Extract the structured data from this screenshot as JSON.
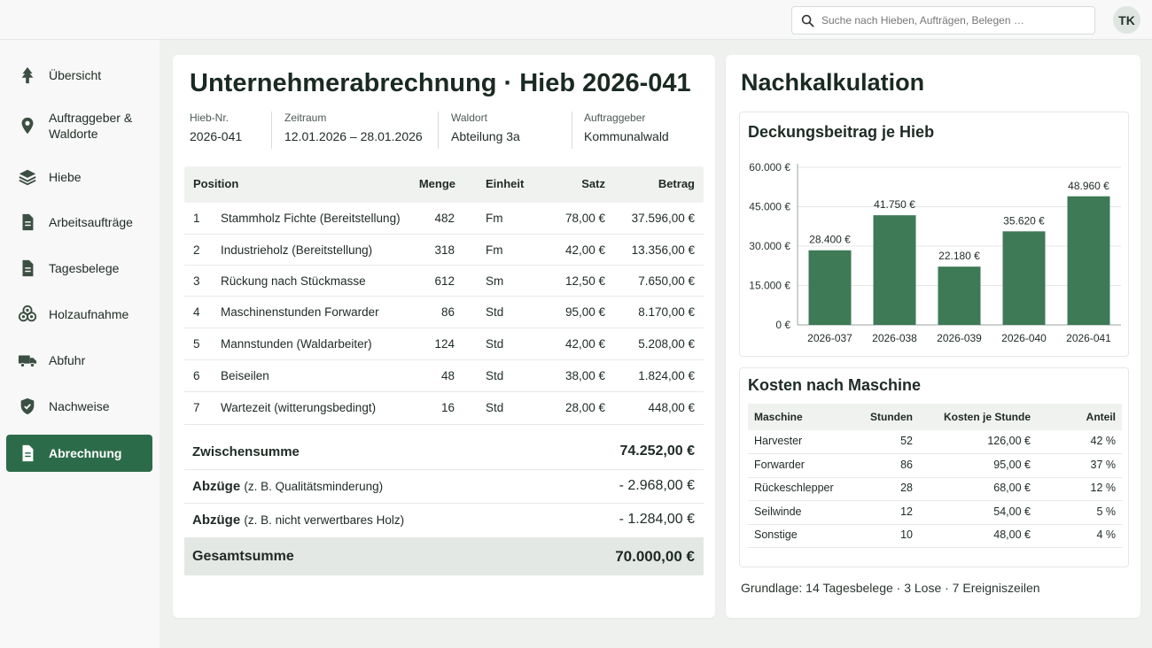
{
  "search": {
    "placeholder": "Suche nach Hieben, Aufträgen, Belegen …"
  },
  "user": {
    "initials": "TK"
  },
  "sidebar": {
    "items": [
      {
        "label": "Übersicht",
        "icon": "tree-icon"
      },
      {
        "label": "Auftraggeber &",
        "label2": "Waldorte",
        "icon": "map-pin-icon"
      },
      {
        "label": "Hiebe",
        "icon": "layers-icon"
      },
      {
        "label": "Arbeitsaufträge",
        "icon": "document-icon"
      },
      {
        "label": "Tagesbelege",
        "icon": "document-icon"
      },
      {
        "label": "Holzaufnahme",
        "icon": "logs-icon"
      },
      {
        "label": "Abfuhr",
        "icon": "truck-icon"
      },
      {
        "label": "Nachweise",
        "icon": "shield-check-icon"
      },
      {
        "label": "Abrechnung",
        "icon": "document-icon",
        "active": true
      }
    ]
  },
  "invoice": {
    "title": "Unternehmerabrechnung · Hieb 2026-041",
    "meta": [
      {
        "key": "Hieb-Nr.",
        "value": "2026-041"
      },
      {
        "key": "Zeitraum",
        "value": "12.01.2026 – 28.01.2026"
      },
      {
        "key": "Waldort",
        "value": "Abteilung 3a"
      },
      {
        "key": "Auftraggeber",
        "value": "Kommunalwald"
      }
    ],
    "columns": {
      "pos": "Position",
      "menge": "Menge",
      "einheit": "Einheit",
      "satz": "Satz",
      "betrag": "Betrag"
    },
    "rows": [
      {
        "nr": "1",
        "desc": "Stammholz Fichte (Bereitstellung)",
        "menge": "482",
        "einheit": "Fm",
        "satz": "78,00 €",
        "betrag": "37.596,00 €"
      },
      {
        "nr": "2",
        "desc": "Industrieholz (Bereitstellung)",
        "menge": "318",
        "einheit": "Fm",
        "satz": "42,00 €",
        "betrag": "13.356,00 €"
      },
      {
        "nr": "3",
        "desc": "Rückung nach Stückmasse",
        "menge": "612",
        "einheit": "Sm",
        "satz": "12,50 €",
        "betrag": "7.650,00 €"
      },
      {
        "nr": "4",
        "desc": "Maschinenstunden Forwarder",
        "menge": "86",
        "einheit": "Std",
        "satz": "95,00 €",
        "betrag": "8.170,00 €"
      },
      {
        "nr": "5",
        "desc": "Mannstunden (Waldarbeiter)",
        "menge": "124",
        "einheit": "Std",
        "satz": "42,00 €",
        "betrag": "5.208,00 €"
      },
      {
        "nr": "6",
        "desc": "Beiseilen",
        "menge": "48",
        "einheit": "Std",
        "satz": "38,00 €",
        "betrag": "1.824,00 €"
      },
      {
        "nr": "7",
        "desc": "Wartezeit (witterungsbedingt)",
        "menge": "16",
        "einheit": "Std",
        "satz": "28,00 €",
        "betrag": "448,00 €"
      }
    ],
    "subtotal": {
      "label": "Zwischensumme",
      "value": "74.252,00 €"
    },
    "deductions": [
      {
        "label": "Abzüge",
        "note": "(z. B. Qualitätsminderung)",
        "value": "- 2.968,00 €"
      },
      {
        "label": "Abzüge",
        "note": "(z. B. nicht verwertbares Holz)",
        "value": "- 1.284,00 €"
      }
    ],
    "total": {
      "label": "Gesamtsumme",
      "value": "70.000,00 €"
    }
  },
  "nachkalkulation": {
    "title": "Nachkalkulation",
    "chart_title": "Deckungsbeitrag je Hieb",
    "machine_title": "Kosten nach Maschine",
    "machine_columns": {
      "maschine": "Maschine",
      "stunden": "Stunden",
      "kosten": "Kosten je Stunde",
      "anteil": "Anteil"
    },
    "machines": [
      {
        "name": "Harvester",
        "stunden": "52",
        "kosten": "126,00 €",
        "anteil": "42 %"
      },
      {
        "name": "Forwarder",
        "stunden": "86",
        "kosten": "95,00 €",
        "anteil": "37 %"
      },
      {
        "name": "Rückeschlepper",
        "stunden": "28",
        "kosten": "68,00 €",
        "anteil": "12 %"
      },
      {
        "name": "Seilwinde",
        "stunden": "12",
        "kosten": "54,00 €",
        "anteil": "5 %"
      },
      {
        "name": "Sonstige",
        "stunden": "10",
        "kosten": "48,00 €",
        "anteil": "4 %"
      }
    ],
    "footnote": "Grundlage: 14 Tagesbelege · 3 Lose · 7 Ereigniszeilen"
  },
  "chart_data": {
    "type": "bar",
    "title": "Deckungsbeitrag je Hieb",
    "categories": [
      "2026-037",
      "2026-038",
      "2026-039",
      "2026-040",
      "2026-041"
    ],
    "values": [
      28400,
      41750,
      22180,
      35620,
      48960
    ],
    "value_labels": [
      "28.400 €",
      "41.750 €",
      "22.180 €",
      "35.620 €",
      "48.960 €"
    ],
    "ylim": [
      0,
      60000
    ],
    "yticks": [
      "0 €",
      "15.000 €",
      "30.000 €",
      "45.000 €",
      "60.000 €"
    ],
    "ytick_values": [
      0,
      15000,
      30000,
      45000,
      60000
    ],
    "grid": true,
    "bar_color": "#3d7a55"
  }
}
